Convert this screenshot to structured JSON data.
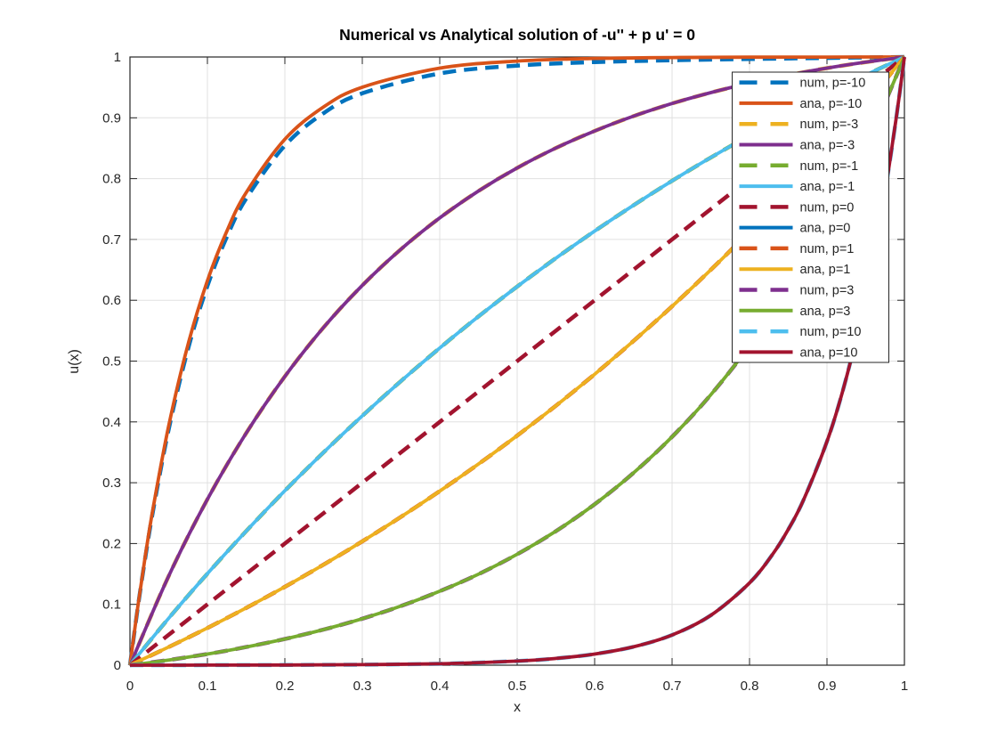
{
  "figure": {
    "background": "#ffffff"
  },
  "chart_data": {
    "type": "line",
    "title": "Numerical vs Analytical solution of -u'' + p u' = 0",
    "xlabel": "x",
    "ylabel": "u(x)",
    "xlim": [
      0,
      1
    ],
    "ylim": [
      0,
      1
    ],
    "grid": true,
    "x_tick_labels": [
      "0",
      "0.1",
      "0.2",
      "0.3",
      "0.4",
      "0.5",
      "0.6",
      "0.7",
      "0.8",
      "0.9",
      "1"
    ],
    "y_tick_labels": [
      "0",
      "0.1",
      "0.2",
      "0.3",
      "0.4",
      "0.5",
      "0.6",
      "0.7",
      "0.8",
      "0.9",
      "1"
    ],
    "legend": {
      "position": "top-right",
      "box": true
    },
    "axis_color": "#262626",
    "grid_color": "#e0e0e0",
    "series": [
      {
        "label": "num, p=-10",
        "style": "dashed",
        "color": "#0072BD",
        "x": [
          0,
          0.01,
          0.02,
          0.03,
          0.05,
          0.075,
          0.1,
          0.125,
          0.15,
          0.2,
          0.25,
          0.3,
          0.4,
          0.5,
          0.6,
          0.7,
          0.8,
          0.9,
          1
        ],
        "y": [
          0,
          0.0938,
          0.1786,
          0.2554,
          0.3879,
          0.5204,
          0.6237,
          0.7041,
          0.767,
          0.8543,
          0.9076,
          0.9403,
          0.9729,
          0.9858,
          0.9916,
          0.9946,
          0.9967,
          0.9984,
          1
        ]
      },
      {
        "label": "ana, p=-10",
        "style": "solid",
        "color": "#D95319",
        "x": [
          0,
          0.01,
          0.02,
          0.03,
          0.05,
          0.075,
          0.1,
          0.125,
          0.15,
          0.2,
          0.25,
          0.3,
          0.4,
          0.5,
          0.6,
          0.7,
          0.8,
          0.9,
          1
        ],
        "y": [
          0,
          0.0952,
          0.1813,
          0.2592,
          0.3935,
          0.5277,
          0.6322,
          0.7135,
          0.7769,
          0.8647,
          0.9179,
          0.9503,
          0.9817,
          0.9933,
          0.9976,
          0.9991,
          0.9997,
          0.9999,
          1
        ]
      },
      {
        "label": "num, p=-3",
        "style": "dashed",
        "color": "#EDB120",
        "x": [
          0,
          0.05,
          0.1,
          0.15,
          0.2,
          0.25,
          0.3,
          0.35,
          0.4,
          0.45,
          0.5,
          0.55,
          0.6,
          0.65,
          0.7,
          0.75,
          0.8,
          0.85,
          0.9,
          0.95,
          1
        ],
        "y": [
          0,
          0.1466,
          0.2728,
          0.3814,
          0.4748,
          0.5553,
          0.6245,
          0.6841,
          0.7354,
          0.7796,
          0.8176,
          0.8503,
          0.8784,
          0.9027,
          0.9235,
          0.9415,
          0.9569,
          0.9702,
          0.9817,
          0.9915,
          1
        ]
      },
      {
        "label": "ana, p=-3",
        "style": "solid",
        "color": "#7E2F8E",
        "x": [
          0,
          0.05,
          0.1,
          0.15,
          0.2,
          0.25,
          0.3,
          0.35,
          0.4,
          0.45,
          0.5,
          0.55,
          0.6,
          0.65,
          0.7,
          0.75,
          0.8,
          0.85,
          0.9,
          0.95,
          1
        ],
        "y": [
          0,
          0.1466,
          0.2728,
          0.3814,
          0.4748,
          0.5553,
          0.6245,
          0.6841,
          0.7354,
          0.7796,
          0.8176,
          0.8503,
          0.8784,
          0.9027,
          0.9235,
          0.9415,
          0.9569,
          0.9702,
          0.9817,
          0.9915,
          1
        ]
      },
      {
        "label": "num, p=-1",
        "style": "dashed",
        "color": "#77AC30",
        "x": [
          0,
          0.05,
          0.1,
          0.15,
          0.2,
          0.25,
          0.3,
          0.35,
          0.4,
          0.45,
          0.5,
          0.55,
          0.6,
          0.65,
          0.7,
          0.75,
          0.8,
          0.85,
          0.9,
          0.95,
          1
        ],
        "y": [
          0,
          0.0772,
          0.1505,
          0.2203,
          0.2868,
          0.3499,
          0.41,
          0.4672,
          0.5215,
          0.5733,
          0.6225,
          0.6693,
          0.7138,
          0.7561,
          0.7964,
          0.8347,
          0.8712,
          0.9058,
          0.9388,
          0.9702,
          1
        ]
      },
      {
        "label": "ana, p=-1",
        "style": "solid",
        "color": "#4DBEEE",
        "x": [
          0,
          0.05,
          0.1,
          0.15,
          0.2,
          0.25,
          0.3,
          0.35,
          0.4,
          0.45,
          0.5,
          0.55,
          0.6,
          0.65,
          0.7,
          0.75,
          0.8,
          0.85,
          0.9,
          0.95,
          1
        ],
        "y": [
          0,
          0.0772,
          0.1505,
          0.2203,
          0.2868,
          0.3499,
          0.41,
          0.4672,
          0.5215,
          0.5733,
          0.6225,
          0.6693,
          0.7138,
          0.7561,
          0.7964,
          0.8347,
          0.8712,
          0.9058,
          0.9388,
          0.9702,
          1
        ]
      },
      {
        "label": "num, p=0",
        "style": "dashed",
        "color": "#A2142F",
        "x": [
          0,
          0.1,
          0.2,
          0.3,
          0.4,
          0.5,
          0.6,
          0.7,
          0.8,
          0.9,
          1
        ],
        "y": [
          0,
          0.1,
          0.2,
          0.3,
          0.4,
          0.5,
          0.6,
          0.7,
          0.8,
          0.9,
          1
        ]
      },
      {
        "label": "ana, p=0",
        "style": "solid",
        "color": "#0072BD",
        "x": [],
        "y": []
      },
      {
        "label": "num, p=1",
        "style": "dashed",
        "color": "#D95319",
        "x": [
          0,
          0.05,
          0.1,
          0.15,
          0.2,
          0.25,
          0.3,
          0.35,
          0.4,
          0.45,
          0.5,
          0.55,
          0.6,
          0.65,
          0.7,
          0.75,
          0.8,
          0.85,
          0.9,
          0.95,
          1
        ],
        "y": [
          0,
          0.0298,
          0.0612,
          0.0942,
          0.1288,
          0.1653,
          0.2036,
          0.2439,
          0.2862,
          0.3307,
          0.3775,
          0.4267,
          0.4784,
          0.5328,
          0.59,
          0.6501,
          0.7132,
          0.7796,
          0.8494,
          0.9228,
          1
        ]
      },
      {
        "label": "ana, p=1",
        "style": "solid",
        "color": "#EDB120",
        "x": [
          0,
          0.05,
          0.1,
          0.15,
          0.2,
          0.25,
          0.3,
          0.35,
          0.4,
          0.45,
          0.5,
          0.55,
          0.6,
          0.65,
          0.7,
          0.75,
          0.8,
          0.85,
          0.9,
          0.95,
          1
        ],
        "y": [
          0,
          0.0298,
          0.0612,
          0.0942,
          0.1288,
          0.1653,
          0.2036,
          0.2439,
          0.2862,
          0.3307,
          0.3775,
          0.4267,
          0.4784,
          0.5328,
          0.59,
          0.6501,
          0.7132,
          0.7796,
          0.8494,
          0.9228,
          1
        ]
      },
      {
        "label": "num, p=3",
        "style": "dashed",
        "color": "#7E2F8E",
        "x": [
          0,
          0.05,
          0.1,
          0.15,
          0.2,
          0.25,
          0.3,
          0.35,
          0.4,
          0.45,
          0.5,
          0.55,
          0.6,
          0.65,
          0.7,
          0.75,
          0.8,
          0.85,
          0.9,
          0.95,
          1
        ],
        "y": [
          0,
          0.0085,
          0.0183,
          0.0298,
          0.0431,
          0.0585,
          0.0765,
          0.0973,
          0.1216,
          0.1497,
          0.1824,
          0.2204,
          0.2646,
          0.3159,
          0.3755,
          0.4447,
          0.5252,
          0.6187,
          0.7272,
          0.8534,
          1
        ]
      },
      {
        "label": "ana, p=3",
        "style": "solid",
        "color": "#77AC30",
        "x": [
          0,
          0.05,
          0.1,
          0.15,
          0.2,
          0.25,
          0.3,
          0.35,
          0.4,
          0.45,
          0.5,
          0.55,
          0.6,
          0.65,
          0.7,
          0.75,
          0.8,
          0.85,
          0.9,
          0.95,
          1
        ],
        "y": [
          0,
          0.0085,
          0.0183,
          0.0298,
          0.0431,
          0.0585,
          0.0765,
          0.0973,
          0.1216,
          0.1497,
          0.1824,
          0.2204,
          0.2646,
          0.3159,
          0.3755,
          0.4447,
          0.5252,
          0.6187,
          0.7272,
          0.8534,
          1
        ]
      },
      {
        "label": "num, p=10",
        "style": "dashed",
        "color": "#4DBEEE",
        "x": [
          0,
          0.1,
          0.2,
          0.3,
          0.4,
          0.5,
          0.55,
          0.6,
          0.65,
          0.7,
          0.75,
          0.8,
          0.83,
          0.85,
          0.87,
          0.9,
          0.92,
          0.94,
          0.95,
          0.96,
          0.97,
          0.98,
          0.99,
          1
        ],
        "y": [
          0,
          0.0001,
          0.0003,
          0.0009,
          0.0024,
          0.0067,
          0.0111,
          0.0183,
          0.0302,
          0.0497,
          0.082,
          0.1353,
          0.1827,
          0.2231,
          0.2725,
          0.3679,
          0.4493,
          0.5488,
          0.6065,
          0.6703,
          0.7408,
          0.8187,
          0.9048,
          1
        ]
      },
      {
        "label": "ana, p=10",
        "style": "solid",
        "color": "#A2142F",
        "x": [
          0,
          0.1,
          0.2,
          0.3,
          0.4,
          0.5,
          0.55,
          0.6,
          0.65,
          0.7,
          0.75,
          0.8,
          0.83,
          0.85,
          0.87,
          0.9,
          0.92,
          0.94,
          0.95,
          0.96,
          0.97,
          0.98,
          0.99,
          1
        ],
        "y": [
          0,
          0.0001,
          0.0003,
          0.0009,
          0.0024,
          0.0067,
          0.0111,
          0.0183,
          0.0302,
          0.0497,
          0.082,
          0.1353,
          0.1827,
          0.2231,
          0.2725,
          0.3679,
          0.4493,
          0.5488,
          0.6065,
          0.6703,
          0.7408,
          0.8187,
          0.9048,
          1
        ]
      }
    ]
  }
}
